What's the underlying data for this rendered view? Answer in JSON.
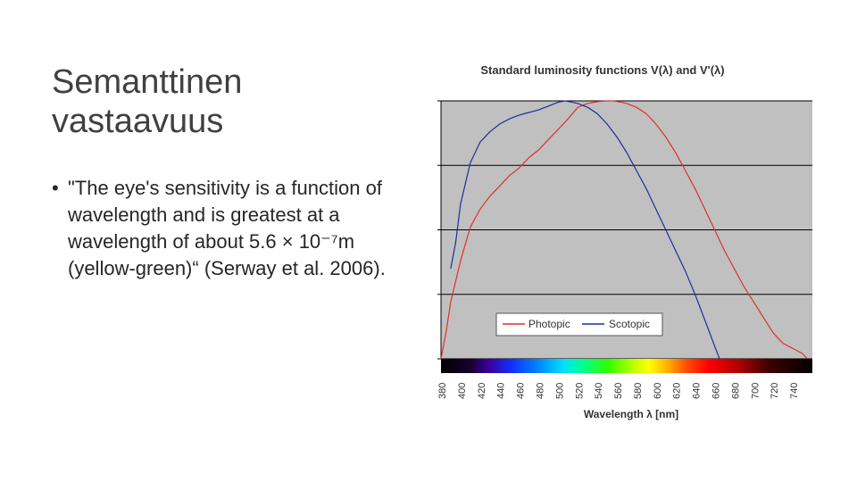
{
  "slide": {
    "title": "Semanttinen vastaavuus",
    "bullet": "\"The eye's sensitivity is a function of wavelength and is greatest at a wavelength of about 5.6 × 10⁻⁷m (yellow-green)“ (Serway et al. 2006)."
  },
  "chart_data": {
    "type": "line",
    "title": "Standard luminosity functions V(λ) and V'(λ)",
    "xlabel": "Wavelength λ [nm]",
    "ylabel": "",
    "xlim": [
      380,
      760
    ],
    "ylim": [
      0,
      1
    ],
    "x_ticks": [
      "380",
      "400",
      "420",
      "440",
      "460",
      "480",
      "500",
      "520",
      "540",
      "560",
      "580",
      "600",
      "620",
      "640",
      "660",
      "680",
      "700",
      "720",
      "740"
    ],
    "grid": true,
    "legend_position": "center-right",
    "series": [
      {
        "name": "Photopic",
        "color": "#e0302a",
        "x": [
          380,
          385,
          390,
          400,
          410,
          420,
          430,
          440,
          450,
          460,
          470,
          480,
          490,
          500,
          510,
          520,
          530,
          540,
          550,
          555,
          560,
          570,
          580,
          590,
          600,
          610,
          620,
          630,
          640,
          650,
          660,
          670,
          680,
          690,
          700,
          710,
          720,
          730,
          740,
          750,
          755
        ],
        "y": [
          0.0,
          0.1,
          0.22,
          0.38,
          0.51,
          0.58,
          0.63,
          0.67,
          0.71,
          0.74,
          0.78,
          0.81,
          0.85,
          0.89,
          0.93,
          0.975,
          0.99,
          0.997,
          1.0,
          1.0,
          0.998,
          0.99,
          0.975,
          0.95,
          0.91,
          0.86,
          0.8,
          0.73,
          0.66,
          0.58,
          0.5,
          0.42,
          0.35,
          0.28,
          0.22,
          0.16,
          0.1,
          0.06,
          0.04,
          0.02,
          0.0
        ]
      },
      {
        "name": "Scotopic",
        "color": "#1c2f9a",
        "x": [
          390,
          395,
          400,
          410,
          420,
          430,
          440,
          450,
          460,
          470,
          480,
          490,
          500,
          507,
          510,
          520,
          530,
          540,
          550,
          560,
          570,
          580,
          590,
          600,
          610,
          620,
          630,
          640,
          650,
          660,
          665
        ],
        "y": [
          0.35,
          0.45,
          0.6,
          0.76,
          0.84,
          0.88,
          0.91,
          0.93,
          0.945,
          0.955,
          0.965,
          0.98,
          0.995,
          1.0,
          0.998,
          0.99,
          0.975,
          0.95,
          0.91,
          0.86,
          0.8,
          0.73,
          0.66,
          0.58,
          0.5,
          0.42,
          0.34,
          0.25,
          0.15,
          0.05,
          0.0
        ]
      }
    ]
  }
}
